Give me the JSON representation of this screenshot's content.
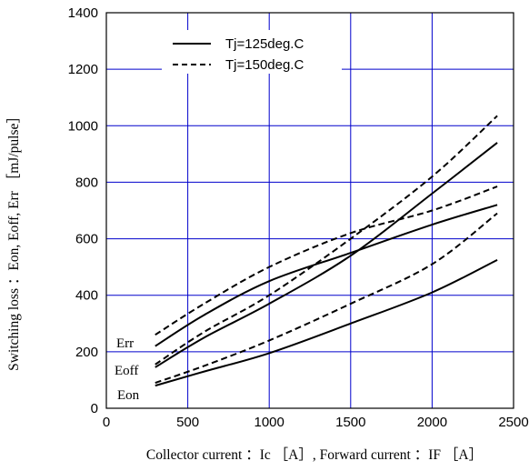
{
  "chart_data": {
    "type": "line",
    "title": "",
    "xlabel": "Collector current ：Ic ［A］, Forward current ：IF ［A］",
    "ylabel": "Switching loss ：Eon, Eoff, Err ［mJ/pulse］",
    "xlim": [
      0,
      2500
    ],
    "ylim": [
      0,
      1400
    ],
    "xticks": [
      0,
      500,
      1000,
      1500,
      2000,
      2500
    ],
    "yticks": [
      0,
      200,
      400,
      600,
      800,
      1000,
      1200,
      1400
    ],
    "grid": true,
    "legend": {
      "placement": "top-left",
      "entries": [
        {
          "label": "Tj=125deg.C",
          "style": "solid"
        },
        {
          "label": "Tj=150deg.C",
          "style": "dashed"
        }
      ]
    },
    "curve_labels": [
      {
        "text": "Err",
        "series": "Err"
      },
      {
        "text": "Eoff",
        "series": "Eoff"
      },
      {
        "text": "Eon",
        "series": "Eon"
      }
    ],
    "series": [
      {
        "curve": "Err",
        "tj": "125",
        "style": "solid",
        "x": [
          300,
          600,
          1000,
          1500,
          2000,
          2400
        ],
        "y": [
          220,
          330,
          450,
          550,
          650,
          720
        ]
      },
      {
        "curve": "Err",
        "tj": "150",
        "style": "dashed",
        "x": [
          300,
          600,
          1000,
          1500,
          2000,
          2400
        ],
        "y": [
          260,
          370,
          500,
          620,
          700,
          785
        ]
      },
      {
        "curve": "Eoff",
        "tj": "125",
        "style": "solid",
        "x": [
          300,
          600,
          1000,
          1500,
          2000,
          2400
        ],
        "y": [
          145,
          250,
          370,
          540,
          760,
          940
        ]
      },
      {
        "curve": "Eoff",
        "tj": "150",
        "style": "dashed",
        "x": [
          300,
          600,
          1000,
          1500,
          2000,
          2400
        ],
        "y": [
          155,
          270,
          400,
          600,
          820,
          1035
        ]
      },
      {
        "curve": "Eon",
        "tj": "125",
        "style": "solid",
        "x": [
          300,
          600,
          1000,
          1500,
          2000,
          2400
        ],
        "y": [
          80,
          130,
          195,
          300,
          410,
          525
        ]
      },
      {
        "curve": "Eon",
        "tj": "150",
        "style": "dashed",
        "x": [
          300,
          600,
          1000,
          1500,
          2000,
          2400
        ],
        "y": [
          90,
          150,
          240,
          370,
          510,
          690
        ]
      }
    ],
    "colors": {
      "grid": "#0000cc",
      "frame": "#000000",
      "line": "#000000",
      "background": "#ffffff"
    }
  }
}
